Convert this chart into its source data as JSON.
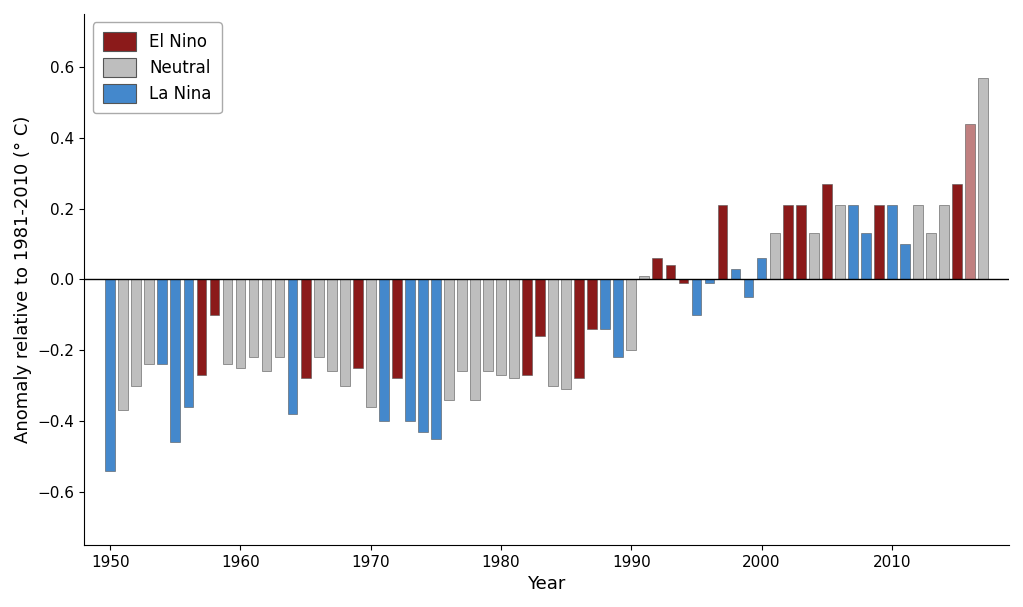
{
  "years": [
    1950,
    1951,
    1952,
    1953,
    1954,
    1955,
    1956,
    1957,
    1958,
    1959,
    1960,
    1961,
    1962,
    1963,
    1964,
    1965,
    1966,
    1967,
    1968,
    1969,
    1970,
    1971,
    1972,
    1973,
    1974,
    1975,
    1976,
    1977,
    1978,
    1979,
    1980,
    1981,
    1982,
    1983,
    1984,
    1985,
    1986,
    1987,
    1988,
    1989,
    1990,
    1991,
    1992,
    1993,
    1994,
    1995,
    1996,
    1997,
    1998,
    1999,
    2000,
    2001,
    2002,
    2003,
    2004,
    2005,
    2006,
    2007,
    2008,
    2009,
    2010,
    2011,
    2012,
    2013,
    2014,
    2015,
    2016,
    2017
  ],
  "values": [
    -0.54,
    -0.37,
    -0.3,
    -0.24,
    -0.24,
    -0.46,
    -0.36,
    -0.27,
    -0.1,
    -0.24,
    -0.25,
    -0.22,
    -0.26,
    -0.22,
    -0.38,
    -0.28,
    -0.22,
    -0.26,
    -0.3,
    -0.25,
    -0.36,
    -0.4,
    -0.28,
    -0.4,
    -0.43,
    -0.45,
    -0.34,
    -0.26,
    -0.34,
    -0.26,
    -0.27,
    -0.28,
    -0.27,
    -0.16,
    -0.3,
    -0.31,
    -0.28,
    -0.14,
    -0.14,
    -0.22,
    -0.2,
    0.01,
    0.06,
    0.04,
    -0.01,
    -0.1,
    -0.01,
    0.21,
    0.03,
    -0.05,
    0.06,
    0.13,
    0.21,
    0.21,
    0.13,
    0.27,
    0.21,
    0.21,
    0.13,
    0.21,
    0.21,
    0.1,
    0.21,
    0.13,
    0.21,
    0.27,
    0.44,
    0.57
  ],
  "colors": [
    "#4488CC",
    "#BEBEBE",
    "#BEBEBE",
    "#BEBEBE",
    "#4488CC",
    "#4488CC",
    "#4488CC",
    "#8B1A1A",
    "#8B1A1A",
    "#BEBEBE",
    "#BEBEBE",
    "#BEBEBE",
    "#BEBEBE",
    "#BEBEBE",
    "#4488CC",
    "#8B1A1A",
    "#BEBEBE",
    "#BEBEBE",
    "#BEBEBE",
    "#8B1A1A",
    "#BEBEBE",
    "#4488CC",
    "#8B1A1A",
    "#4488CC",
    "#4488CC",
    "#4488CC",
    "#BEBEBE",
    "#BEBEBE",
    "#BEBEBE",
    "#BEBEBE",
    "#BEBEBE",
    "#BEBEBE",
    "#8B1A1A",
    "#8B1A1A",
    "#BEBEBE",
    "#BEBEBE",
    "#8B1A1A",
    "#8B1A1A",
    "#4488CC",
    "#4488CC",
    "#BEBEBE",
    "#BEBEBE",
    "#8B1A1A",
    "#8B1A1A",
    "#8B1A1A",
    "#4488CC",
    "#4488CC",
    "#8B1A1A",
    "#4488CC",
    "#4488CC",
    "#4488CC",
    "#BEBEBE",
    "#8B1A1A",
    "#8B1A1A",
    "#BEBEBE",
    "#8B1A1A",
    "#BEBEBE",
    "#4488CC",
    "#4488CC",
    "#8B1A1A",
    "#4488CC",
    "#4488CC",
    "#BEBEBE",
    "#BEBEBE",
    "#BEBEBE",
    "#8B1A1A",
    "#C08080",
    "#BEBEBE"
  ],
  "ylabel": "Anomaly relative to 1981-2010 (° C)",
  "xlabel": "Year",
  "ylim": [
    -0.75,
    0.75
  ],
  "yticks": [
    -0.6,
    -0.4,
    -0.2,
    0.0,
    0.2,
    0.4,
    0.6
  ],
  "xticks": [
    1950,
    1960,
    1970,
    1980,
    1990,
    2000,
    2010
  ],
  "legend_labels": [
    "El Nino",
    "Neutral",
    "La Nina"
  ],
  "legend_colors": [
    "#8B1A1A",
    "#BEBEBE",
    "#4488CC"
  ],
  "bar_width": 0.75,
  "axis_fontsize": 13,
  "tick_fontsize": 11,
  "xlim_left": 1948.0,
  "xlim_right": 2019.0
}
